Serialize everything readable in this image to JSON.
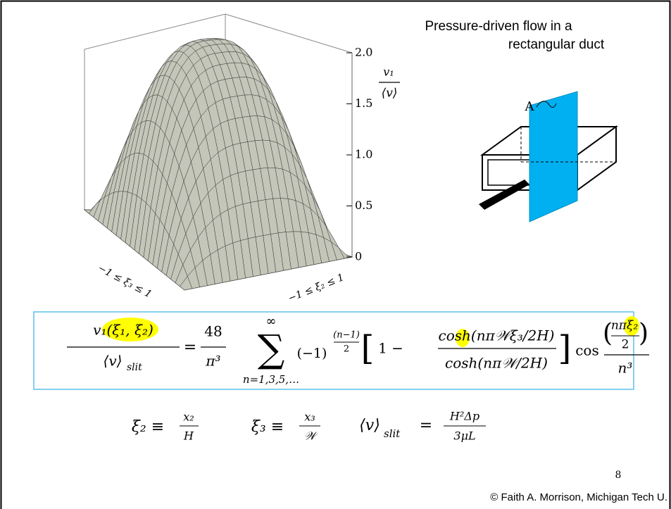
{
  "slide": {
    "title_line1": "Pressure-driven flow in a",
    "title_line2": "rectangular duct",
    "page_number": "8",
    "footer": "© Faith A. Morrison, Michigan Tech U."
  },
  "surface_plot": {
    "z_label_numerator": "v₁",
    "z_label_denominator": "⟨v⟩",
    "z_ticks": [
      "2.0",
      "1.5",
      "1.0",
      "0.5",
      "0"
    ],
    "xi3_label": "−1 ≤ ξ₃ ≤ 1",
    "xi2_label": "−1 ≤ ξ₂ ≤ 1"
  },
  "duct_diagram": {
    "label": "A"
  },
  "main_equation": {
    "lhs_numerator": "v₁(ξ₁, ξ₂)",
    "lhs_denominator": "⟨v⟩",
    "lhs_subscript": "slit",
    "equals": "=",
    "coef_numerator": "48",
    "coef_denominator": "π³",
    "sum_upper": "∞",
    "sum_symbol": "∑",
    "sum_lower": "n=1,3,5,…",
    "sign_base": "(−1)",
    "sign_exp_numerator": "(n−1)",
    "sign_exp_denominator": "2",
    "open_bracket": "[",
    "one_minus": "1 −",
    "cosh_numerator": "cosh(nπ𝒲ξ₃/2H)",
    "cosh_denominator": "cosh(nπ𝒲/2H)",
    "close_bracket": "]",
    "cos": "cos",
    "open_paren": "(",
    "cos_arg_numerator": "nπξ₂",
    "cos_arg_denominator": "2",
    "close_paren": ")",
    "cos_denominator": "n³"
  },
  "definitions": [
    {
      "lhs": "ξ₂ ≡",
      "numerator": "x₂",
      "denominator": "H"
    },
    {
      "lhs": "ξ₃ ≡",
      "numerator": "x₃",
      "denominator": "𝒲"
    },
    {
      "lhs": "⟨v⟩",
      "subscript": "slit",
      "equals": "=",
      "numerator": "H²Δp",
      "denominator": "3μL"
    }
  ]
}
